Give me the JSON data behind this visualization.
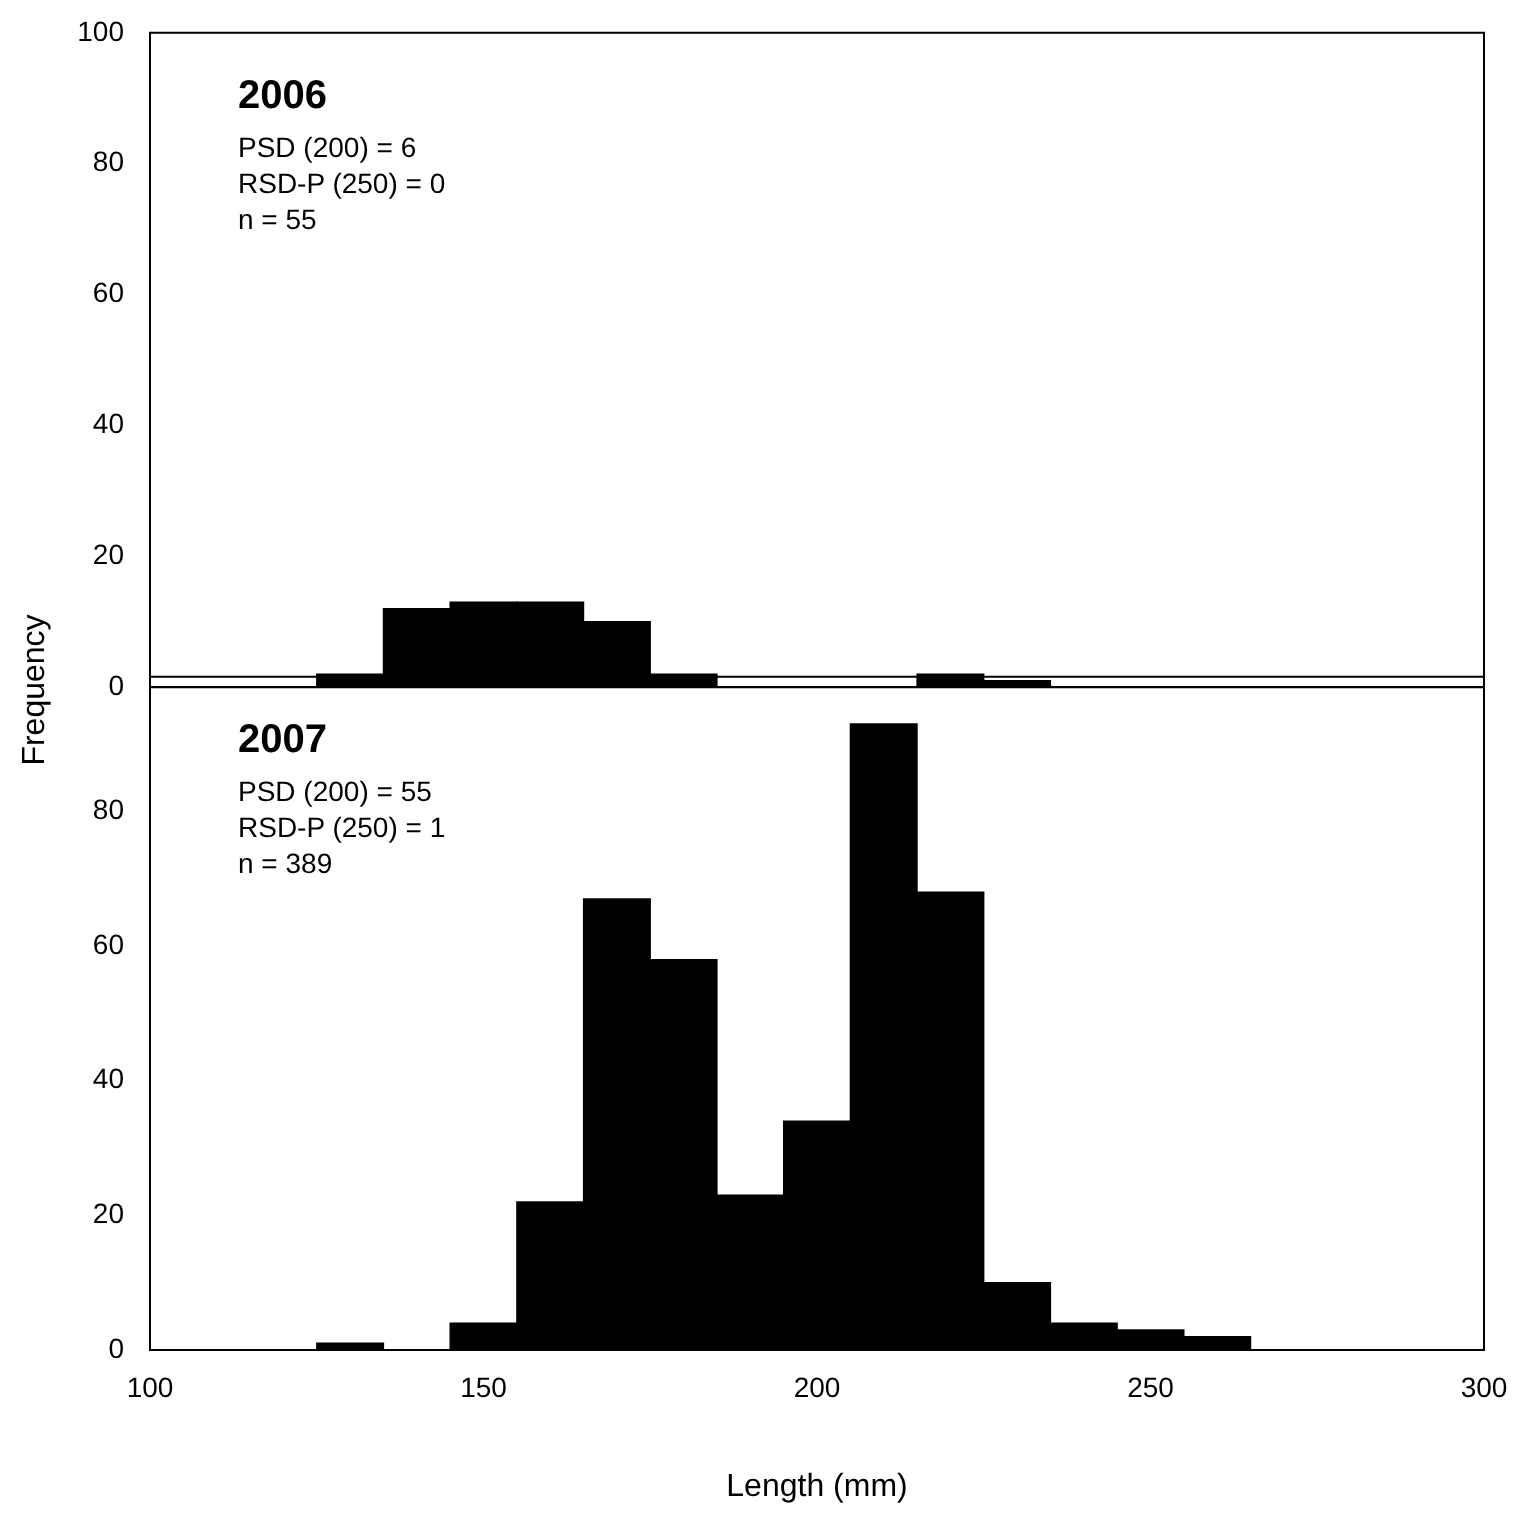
{
  "chart_data": [
    {
      "type": "histogram",
      "ylabel": "Frequency",
      "annotations": [
        "2006",
        "PSD (200) = 6",
        "RSD-P (250) = 0",
        "n = 55"
      ],
      "bins": [
        125,
        135,
        145,
        155,
        165,
        175,
        185,
        195,
        205,
        215,
        225,
        235
      ],
      "values": [
        2,
        12,
        13,
        13,
        10,
        2,
        0,
        0,
        0,
        2,
        1
      ],
      "color": "#000000",
      "xlim": [
        100,
        300
      ],
      "xticks": [
        100,
        150,
        200,
        250,
        300
      ],
      "ylim": [
        0,
        100
      ],
      "yticks": [
        0,
        20,
        40,
        60,
        80,
        100
      ],
      "tick_labels": "y",
      "grid": false,
      "legend": false
    },
    {
      "type": "histogram",
      "xlabel": "Length (mm)",
      "annotations": [
        "2007",
        "PSD (200) = 55",
        "RSD-P (250) = 1",
        "n = 389"
      ],
      "bins": [
        125,
        135,
        145,
        155,
        165,
        175,
        185,
        195,
        205,
        215,
        225,
        235,
        245,
        255,
        265
      ],
      "values": [
        1,
        0,
        4,
        22,
        67,
        58,
        23,
        34,
        93,
        68,
        10,
        4,
        3,
        2
      ],
      "color": "#000000",
      "xlim": [
        100,
        300
      ],
      "xticks": [
        100,
        150,
        200,
        250,
        300
      ],
      "ylim": [
        0,
        100
      ],
      "yticks": [
        0,
        20,
        40,
        60,
        80
      ],
      "grid": false,
      "legend": false
    }
  ]
}
